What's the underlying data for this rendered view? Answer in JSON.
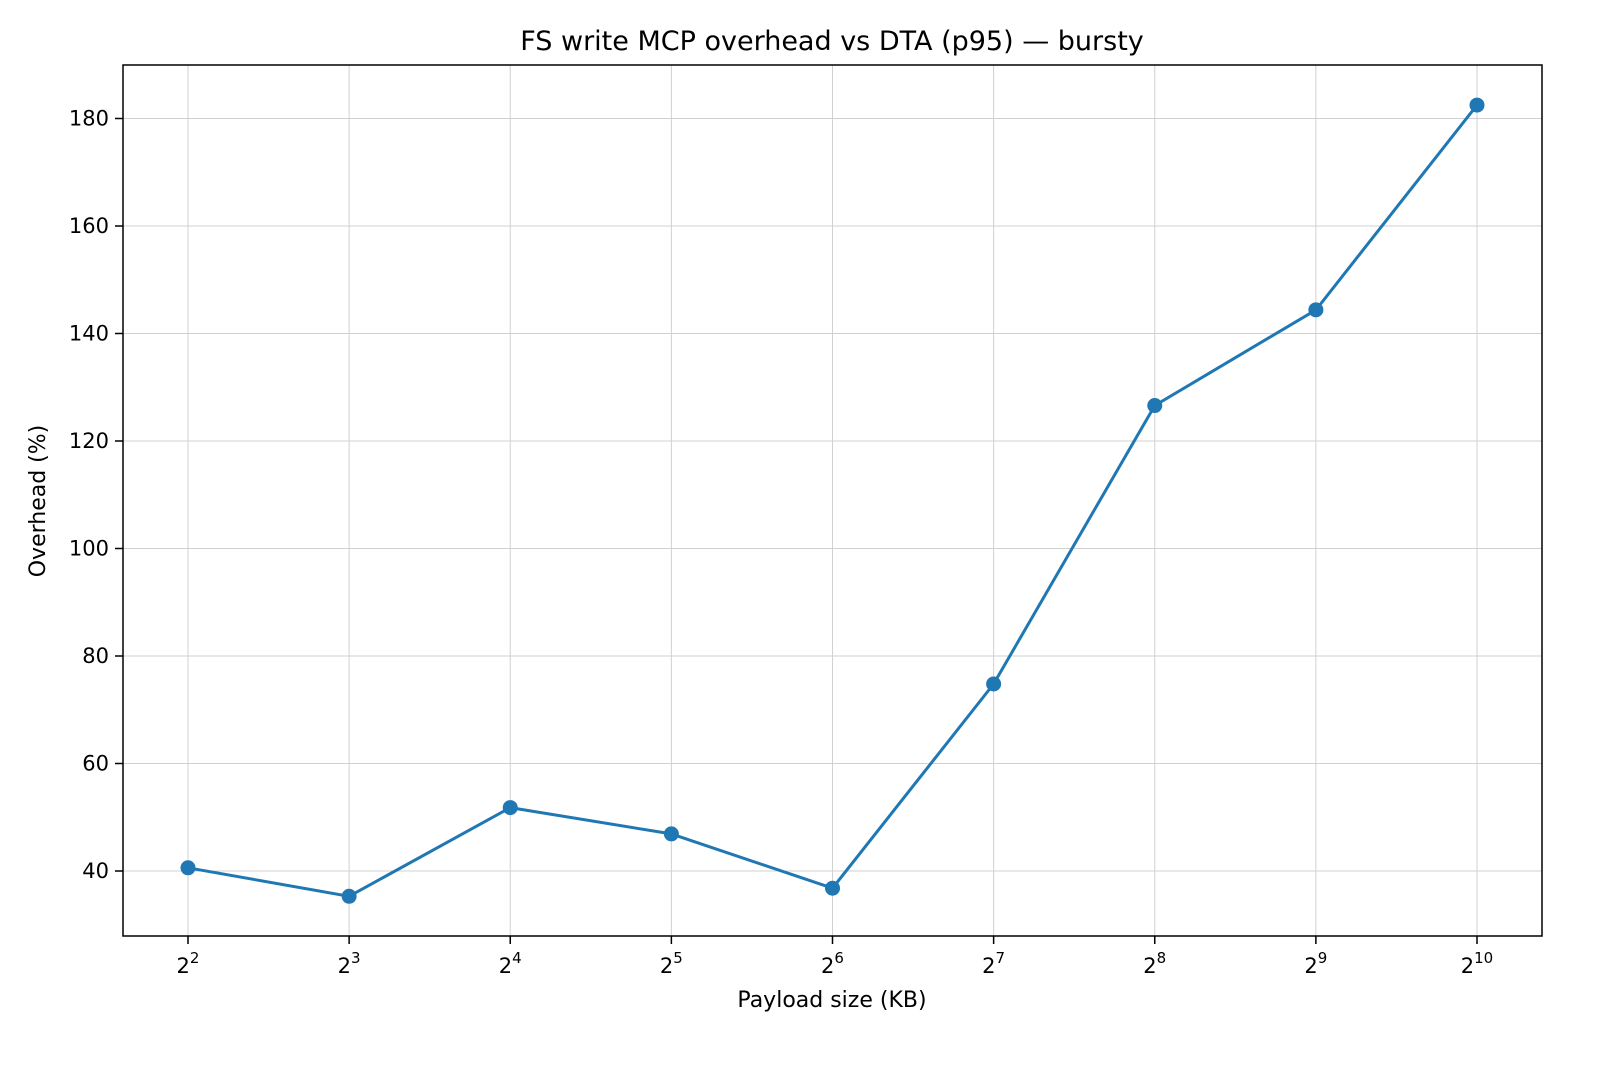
{
  "chart_data": {
    "type": "line",
    "title": "FS write MCP overhead vs DTA (p95) — bursty",
    "xlabel": "Payload size (KB)",
    "ylabel": "Overhead (%)",
    "x_scale": "log2",
    "x": [
      4,
      8,
      16,
      32,
      64,
      128,
      256,
      512,
      1024
    ],
    "x_tick_labels": [
      {
        "base": "2",
        "exp": "2"
      },
      {
        "base": "2",
        "exp": "3"
      },
      {
        "base": "2",
        "exp": "4"
      },
      {
        "base": "2",
        "exp": "5"
      },
      {
        "base": "2",
        "exp": "6"
      },
      {
        "base": "2",
        "exp": "7"
      },
      {
        "base": "2",
        "exp": "8"
      },
      {
        "base": "2",
        "exp": "9"
      },
      {
        "base": "2",
        "exp": "10"
      }
    ],
    "series": [
      {
        "values": [
          40.6,
          35.3,
          51.8,
          46.9,
          36.8,
          74.8,
          126.6,
          144.4,
          182.5
        ],
        "color": "#1f77b4",
        "marker": "circle"
      }
    ],
    "y_ticks": [
      "40",
      "60",
      "80",
      "100",
      "120",
      "140",
      "160",
      "180"
    ],
    "ylim": [
      28,
      190
    ],
    "grid": true,
    "legend": "none"
  }
}
